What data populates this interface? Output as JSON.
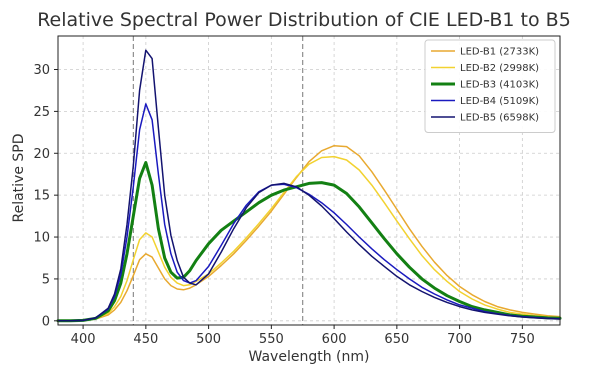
{
  "chart_data": {
    "type": "line",
    "title": "Relative Spectral Power Distribution of CIE LED-B1 to B5",
    "xlabel": "Wavelength (nm)",
    "ylabel": "Relative SPD",
    "xlim": [
      380,
      780
    ],
    "ylim": [
      -0.5,
      34
    ],
    "xticks": [
      400,
      450,
      500,
      550,
      600,
      650,
      700,
      750
    ],
    "yticks": [
      0,
      5,
      10,
      15,
      20,
      25,
      30
    ],
    "grid": true,
    "legend_position": "top-right",
    "reference_lines_x": [
      440,
      575
    ],
    "x": [
      380,
      390,
      400,
      410,
      420,
      425,
      430,
      435,
      440,
      445,
      450,
      455,
      460,
      465,
      470,
      475,
      480,
      485,
      490,
      500,
      510,
      520,
      530,
      540,
      550,
      560,
      570,
      580,
      590,
      600,
      610,
      620,
      630,
      640,
      650,
      660,
      670,
      680,
      690,
      700,
      710,
      720,
      730,
      740,
      750,
      760,
      770,
      780
    ],
    "series": [
      {
        "name": "LED-B1 (2733K)",
        "color": "#E8A930",
        "width": 1.5,
        "values": [
          0,
          0,
          0.05,
          0.2,
          0.7,
          1.3,
          2.2,
          3.6,
          5.4,
          7.3,
          8.0,
          7.6,
          6.3,
          5.0,
          4.2,
          3.8,
          3.7,
          3.9,
          4.3,
          5.3,
          6.6,
          8.0,
          9.6,
          11.3,
          13.1,
          15.1,
          17.1,
          19.0,
          20.3,
          20.9,
          20.8,
          19.7,
          17.8,
          15.6,
          13.3,
          11.0,
          8.9,
          7.0,
          5.4,
          4.1,
          3.1,
          2.3,
          1.7,
          1.3,
          1.0,
          0.8,
          0.6,
          0.5
        ]
      },
      {
        "name": "LED-B2 (2998K)",
        "color": "#F2D230",
        "width": 1.5,
        "values": [
          0,
          0,
          0.05,
          0.25,
          0.9,
          1.7,
          2.9,
          4.8,
          7.3,
          9.7,
          10.5,
          10.0,
          8.2,
          6.4,
          5.2,
          4.5,
          4.2,
          4.3,
          4.7,
          5.6,
          6.9,
          8.3,
          9.9,
          11.6,
          13.4,
          15.3,
          17.2,
          18.7,
          19.5,
          19.6,
          19.2,
          18.0,
          16.2,
          14.1,
          11.9,
          9.8,
          7.8,
          6.1,
          4.7,
          3.5,
          2.6,
          1.9,
          1.4,
          1.0,
          0.8,
          0.6,
          0.5,
          0.4
        ]
      },
      {
        "name": "LED-B3 (4103K)",
        "color": "#138013",
        "width": 3,
        "values": [
          0,
          0,
          0.05,
          0.3,
          1.2,
          2.4,
          4.5,
          8.0,
          12.5,
          17.0,
          18.9,
          16.2,
          11.0,
          7.5,
          5.8,
          5.1,
          5.2,
          6.0,
          7.2,
          9.2,
          10.8,
          11.9,
          13.0,
          14.1,
          15.0,
          15.6,
          16.0,
          16.4,
          16.5,
          16.2,
          15.2,
          13.6,
          11.7,
          9.8,
          8.0,
          6.4,
          5.0,
          3.9,
          3.0,
          2.3,
          1.7,
          1.3,
          1.0,
          0.7,
          0.55,
          0.45,
          0.35,
          0.3
        ]
      },
      {
        "name": "LED-B4 (5109K)",
        "color": "#1A1ABF",
        "width": 1.5,
        "values": [
          0,
          0,
          0.05,
          0.35,
          1.4,
          2.9,
          5.5,
          10.0,
          16.0,
          22.8,
          25.9,
          24.0,
          17.5,
          11.5,
          8.0,
          5.8,
          4.8,
          4.5,
          4.8,
          6.5,
          9.0,
          11.6,
          13.8,
          15.4,
          16.2,
          16.3,
          15.9,
          15.1,
          14.1,
          12.9,
          11.5,
          10.0,
          8.6,
          7.3,
          6.1,
          5.0,
          4.0,
          3.2,
          2.5,
          1.9,
          1.5,
          1.1,
          0.85,
          0.65,
          0.5,
          0.4,
          0.3,
          0.25
        ]
      },
      {
        "name": "LED-B5 (6598K)",
        "color": "#131370",
        "width": 1.5,
        "values": [
          0,
          0,
          0.05,
          0.35,
          1.5,
          3.2,
          6.2,
          11.5,
          18.5,
          27.5,
          32.3,
          31.3,
          23.0,
          15.0,
          10.2,
          7.2,
          5.2,
          4.5,
          4.3,
          5.6,
          8.2,
          11.0,
          13.5,
          15.3,
          16.2,
          16.4,
          16.0,
          15.0,
          13.7,
          12.2,
          10.6,
          9.1,
          7.7,
          6.5,
          5.3,
          4.3,
          3.5,
          2.8,
          2.2,
          1.7,
          1.3,
          1.0,
          0.8,
          0.6,
          0.45,
          0.35,
          0.28,
          0.22
        ]
      }
    ]
  }
}
